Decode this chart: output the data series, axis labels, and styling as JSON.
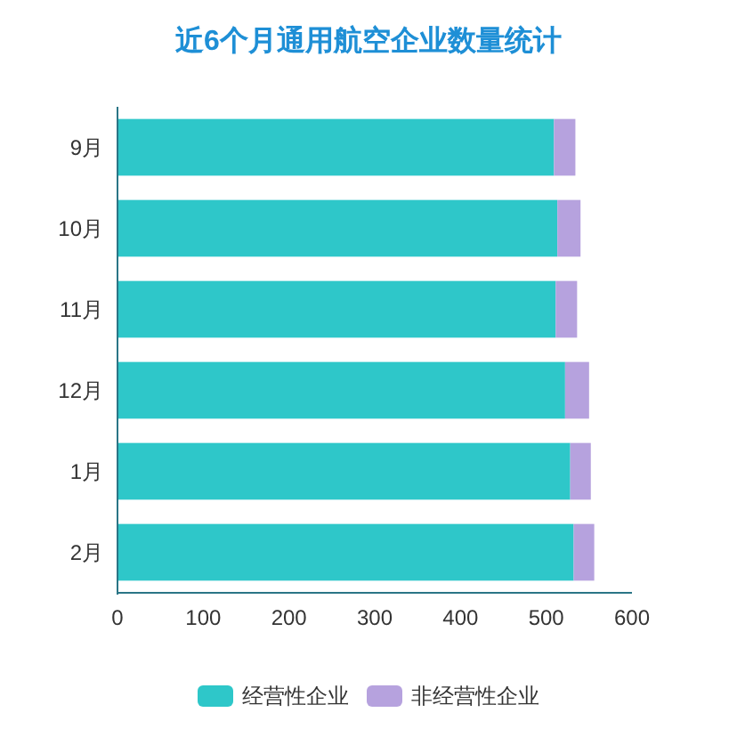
{
  "chart_data": {
    "type": "bar",
    "title": "近6个月通用航空企业数量统计",
    "orientation": "horizontal",
    "stacked": true,
    "categories": [
      "9月",
      "10月",
      "11月",
      "12月",
      "1月",
      "2月"
    ],
    "series": [
      {
        "name": "经营性企业",
        "color": "#2ec7c9",
        "values": [
          509,
          513,
          511,
          522,
          528,
          532
        ]
      },
      {
        "name": "非经营性企业",
        "color": "#b6a2de",
        "values": [
          25,
          27,
          25,
          28,
          24,
          24
        ]
      }
    ],
    "xlim": [
      0,
      600
    ],
    "xticks": [
      0,
      100,
      200,
      300,
      400,
      500,
      600
    ],
    "legend": "bottom"
  }
}
